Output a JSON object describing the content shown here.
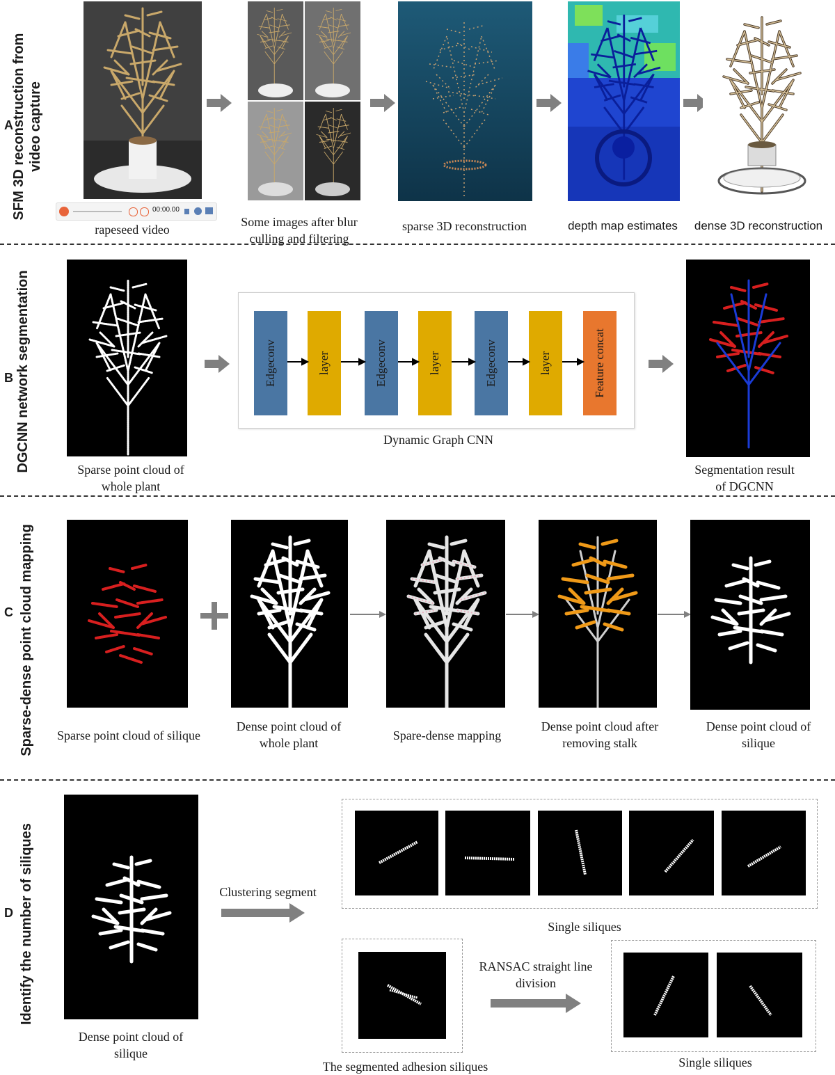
{
  "panels": {
    "A": {
      "letter": "A",
      "title_line1": "SFM 3D reconstruction from",
      "title_line2": "video capture",
      "captions": {
        "video": "rapeseed video",
        "images_l1": "Some images after blur",
        "images_l2": "culling and filtering",
        "sparse": "sparse 3D reconstruction",
        "depth": "depth map estimates",
        "dense": "dense 3D reconstruction"
      },
      "player_time": "00:00.00"
    },
    "B": {
      "letter": "B",
      "title": "DGCNN network segmentation",
      "blocks": [
        "Edgeconv",
        "layer",
        "Edgeconv",
        "layer",
        "Edgeconv",
        "layer",
        "Feature concat"
      ],
      "network_caption": "Dynamic Graph CNN",
      "captions": {
        "input_l1": "Sparse point cloud of",
        "input_l2": "whole plant",
        "output_l1": "Segmentation result",
        "output_l2": "of DGCNN"
      }
    },
    "C": {
      "letter": "C",
      "title": "Sparse-dense point cloud mapping",
      "captions": {
        "c1": "Sparse point cloud of silique",
        "c2_l1": "Dense point cloud of",
        "c2_l2": "whole plant",
        "c3": "Spare-dense mapping",
        "c4_l1": "Dense point cloud  after",
        "c4_l2": "removing stalk",
        "c5_l1": "Dense point cloud of",
        "c5_l2": "silique"
      }
    },
    "D": {
      "letter": "D",
      "title": "Identify the number of siliques",
      "captions": {
        "input_l1": "Dense point cloud of",
        "input_l2": "silique",
        "clustering": "Clustering segment",
        "single_top": "Single siliques",
        "adhesion": "The segmented adhesion siliques",
        "ransac_l1": "RANSAC straight line",
        "ransac_l2": "division",
        "single_bottom": "Single siliques"
      }
    }
  },
  "colors": {
    "edgeconv": "#4a76a3",
    "layer": "#dfaa00",
    "concat": "#e8772e",
    "arrow": "#808080",
    "sparse_red": "#d81f1f",
    "stalk_blue": "#1a3bd6",
    "orange": "#f09a18"
  }
}
